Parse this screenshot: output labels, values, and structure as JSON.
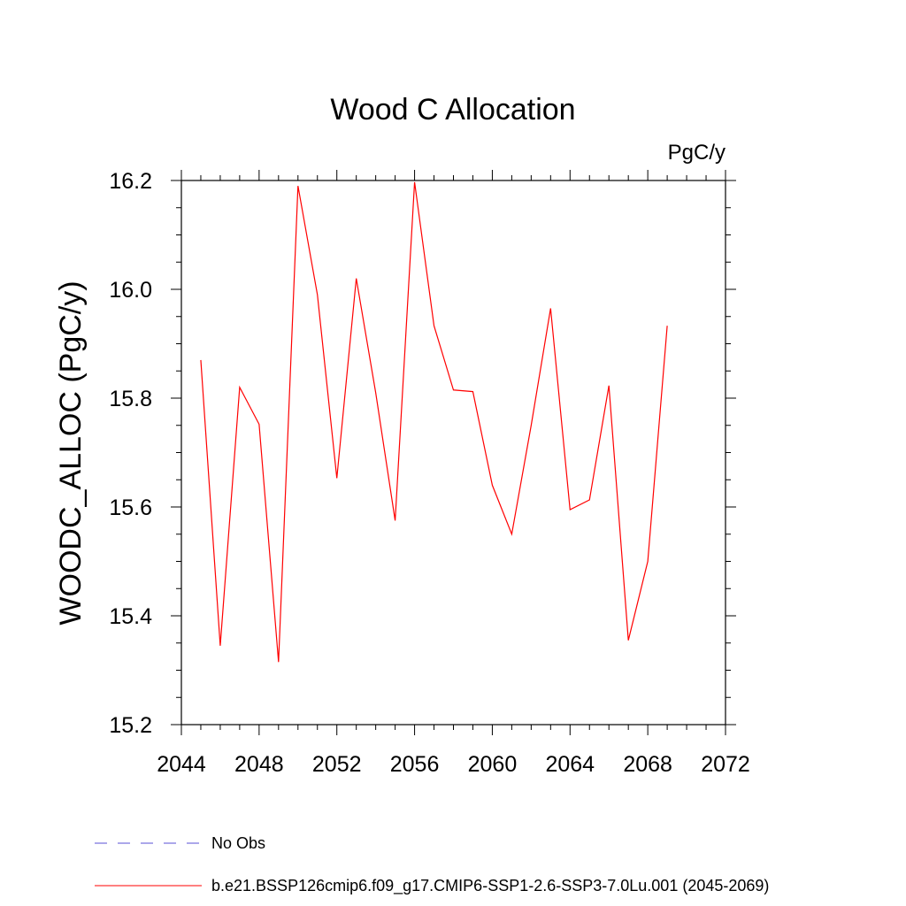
{
  "chart_data": {
    "type": "line",
    "title": "Wood C Allocation",
    "units_label": "PgC/y",
    "ylabel": "WOODC_ALLOC  (PgC/y)",
    "xlabel": "",
    "xlim": [
      2044,
      2072
    ],
    "ylim": [
      15.2,
      16.2
    ],
    "x_ticks": [
      2044,
      2048,
      2052,
      2056,
      2060,
      2064,
      2068,
      2072
    ],
    "x_tick_labels": [
      "2044",
      "2048",
      "2052",
      "2056",
      "2060",
      "2064",
      "2068",
      "2072"
    ],
    "y_ticks": [
      15.2,
      15.4,
      15.6,
      15.8,
      16.0,
      16.2
    ],
    "y_tick_labels": [
      "15.2",
      "15.4",
      "15.6",
      "15.8",
      "16.0",
      "16.2"
    ],
    "x_minor_step": 1,
    "y_minor_step": 0.05,
    "grid": false,
    "series": [
      {
        "name": "b.e21.BSSP126cmip6.f09_g17.CMIP6-SSP1-2.6-SSP3-7.0Lu.001 (2045-2069)",
        "color": "#ff0000",
        "x": [
          2045,
          2046,
          2047,
          2048,
          2049,
          2050,
          2051,
          2052,
          2053,
          2054,
          2055,
          2056,
          2057,
          2058,
          2059,
          2060,
          2061,
          2062,
          2063,
          2064,
          2065,
          2066,
          2067,
          2068,
          2069
        ],
        "values": [
          15.87,
          15.345,
          15.82,
          15.752,
          15.315,
          16.19,
          15.99,
          15.653,
          16.02,
          15.81,
          15.575,
          16.197,
          15.933,
          15.815,
          15.812,
          15.64,
          15.55,
          15.75,
          15.965,
          15.595,
          15.613,
          15.823,
          15.355,
          15.5,
          15.933
        ]
      }
    ],
    "legend": {
      "placement": "bottom",
      "entries": [
        {
          "label": "No Obs",
          "color": "#5a4fd6",
          "style": "dashed"
        },
        {
          "label": "b.e21.BSSP126cmip6.f09_g17.CMIP6-SSP1-2.6-SSP3-7.0Lu.001 (2045-2069)",
          "color": "#ff0000",
          "style": "solid"
        }
      ]
    }
  }
}
